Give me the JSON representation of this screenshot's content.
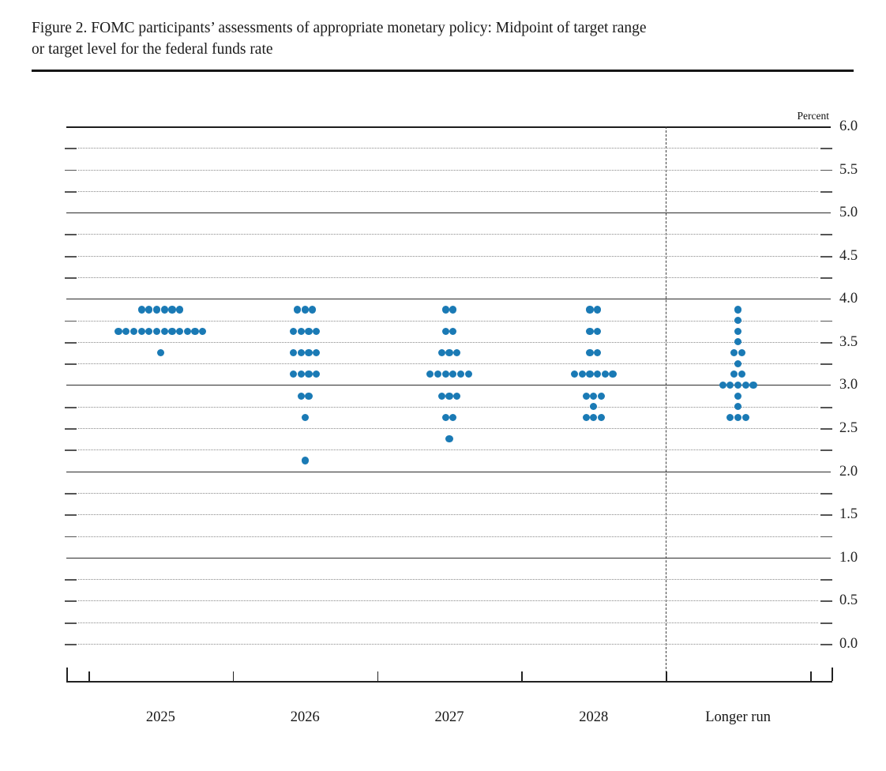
{
  "header": {
    "title_line1": "Figure 2. FOMC participants’ assessments of appropriate monetary policy: Midpoint of target range",
    "title_line2": "or target level for the federal funds rate"
  },
  "chart_data": {
    "type": "scatter",
    "subtype": "fomc-dot-plot",
    "title": "Figure 2. FOMC participants’ assessments of appropriate monetary policy: Midpoint of target range or target level for the federal funds rate",
    "unit_label": "Percent",
    "categories": [
      "2025",
      "2026",
      "2027",
      "2028",
      "Longer run"
    ],
    "y_axis": {
      "min": 0.0,
      "max": 6.0,
      "label_step": 0.5,
      "grid_step": 0.25,
      "solid_lines_at_integers": true,
      "tick_labels": [
        "0.0",
        "0.5",
        "1.0",
        "1.5",
        "2.0",
        "2.5",
        "3.0",
        "3.5",
        "4.0",
        "4.5",
        "5.0",
        "5.5",
        "6.0"
      ]
    },
    "legend": "none",
    "series": [
      {
        "category": "2025",
        "dots": [
          {
            "rate": 3.875,
            "count": 6
          },
          {
            "rate": 3.625,
            "count": 12
          },
          {
            "rate": 3.375,
            "count": 1
          }
        ]
      },
      {
        "category": "2026",
        "dots": [
          {
            "rate": 3.875,
            "count": 3
          },
          {
            "rate": 3.625,
            "count": 4
          },
          {
            "rate": 3.375,
            "count": 4
          },
          {
            "rate": 3.125,
            "count": 4
          },
          {
            "rate": 2.875,
            "count": 2
          },
          {
            "rate": 2.625,
            "count": 1
          },
          {
            "rate": 2.125,
            "count": 1
          }
        ]
      },
      {
        "category": "2027",
        "dots": [
          {
            "rate": 3.875,
            "count": 2
          },
          {
            "rate": 3.625,
            "count": 2
          },
          {
            "rate": 3.375,
            "count": 3
          },
          {
            "rate": 3.125,
            "count": 6
          },
          {
            "rate": 2.875,
            "count": 3
          },
          {
            "rate": 2.625,
            "count": 2
          },
          {
            "rate": 2.375,
            "count": 1
          }
        ]
      },
      {
        "category": "2028",
        "dots": [
          {
            "rate": 3.875,
            "count": 2
          },
          {
            "rate": 3.625,
            "count": 2
          },
          {
            "rate": 3.375,
            "count": 2
          },
          {
            "rate": 3.125,
            "count": 6
          },
          {
            "rate": 2.875,
            "count": 3
          },
          {
            "rate": 2.75,
            "count": 1
          },
          {
            "rate": 2.625,
            "count": 3
          }
        ]
      },
      {
        "category": "Longer run",
        "dots": [
          {
            "rate": 3.875,
            "count": 1
          },
          {
            "rate": 3.75,
            "count": 1
          },
          {
            "rate": 3.625,
            "count": 1
          },
          {
            "rate": 3.5,
            "count": 1
          },
          {
            "rate": 3.375,
            "count": 2
          },
          {
            "rate": 3.25,
            "count": 1
          },
          {
            "rate": 3.125,
            "count": 2
          },
          {
            "rate": 3.0,
            "count": 5
          },
          {
            "rate": 2.875,
            "count": 1
          },
          {
            "rate": 2.75,
            "count": 1
          },
          {
            "rate": 2.625,
            "count": 3
          }
        ]
      }
    ],
    "colors": {
      "dot": "#1A7AB5",
      "axis": "#222222",
      "grid_minor": "#8A8A8A",
      "text": "#111111"
    }
  }
}
